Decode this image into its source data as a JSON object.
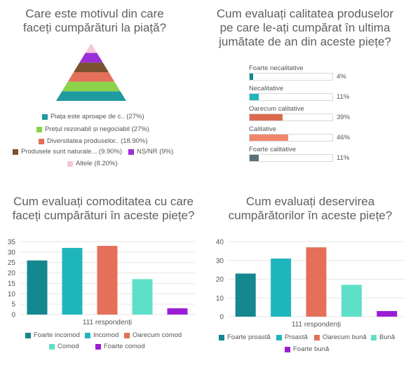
{
  "chart_data": [
    {
      "type": "pyramid",
      "title": "Care este motivul din care faceți cumpărături la piață?",
      "series": [
        {
          "label": "Piața este aproape de c.. (27%)",
          "value": 27,
          "color": "#1f9aa0"
        },
        {
          "label": "Prețul rezonabil și negociabil (27%)",
          "value": 27,
          "color": "#8bd34a"
        },
        {
          "label": "Diversitatea produselor.. (18.90%)",
          "value": 18.9,
          "color": "#e4705a"
        },
        {
          "label": "Produsele sunt naturale... (9.90%)",
          "value": 9.9,
          "color": "#7a5230"
        },
        {
          "label": "NȘ/NR (9%)",
          "value": 9,
          "color": "#9b2fd6"
        },
        {
          "label": "Altele (8.20%)",
          "value": 8.2,
          "color": "#f4c6d8"
        }
      ]
    },
    {
      "type": "bar",
      "orientation": "horizontal",
      "title": "Cum evaluați calitatea produselor pe care le-ați cumpărat în ultima jumătate de an din aceste piețe?",
      "categories": [
        "Foarte necalitative",
        "Necalitative",
        "Oarecum calitative",
        "Calitative",
        "Foarte calitative"
      ],
      "values": [
        4,
        11,
        39,
        46,
        11
      ],
      "labels": [
        "4%",
        "11%",
        "39%",
        "46%",
        "11%"
      ],
      "colors": [
        "#14878f",
        "#1fb5bd",
        "#dd6a4f",
        "#f0876a",
        "#5a7078"
      ]
    },
    {
      "type": "bar",
      "title": "Cum evaluați comoditatea cu care faceți cumpărături în aceste piețe?",
      "categories": [
        "Foarte incomod",
        "Incomod",
        "Oarecum comod",
        "Comod",
        "Foarte comod"
      ],
      "values": [
        26,
        32,
        33,
        17,
        3
      ],
      "colors": [
        "#14878f",
        "#1fb5bd",
        "#e4705a",
        "#5ee0c8",
        "#9b1ed6"
      ],
      "xlabel": "111 respondenți",
      "ylim": [
        0,
        35
      ],
      "yticks": [
        0,
        5,
        10,
        15,
        20,
        25,
        30,
        35
      ]
    },
    {
      "type": "bar",
      "title": "Cum evaluați deservirea cumpărătorilor în aceste piețe?",
      "categories": [
        "Foarte proastă",
        "Proastă",
        "Oarecum bună",
        "Bună",
        "Foarte bună"
      ],
      "values": [
        23,
        31,
        37,
        17,
        3
      ],
      "colors": [
        "#14878f",
        "#1fb5bd",
        "#e4705a",
        "#5ee0c8",
        "#9b1ed6"
      ],
      "xlabel": "111 respondenți",
      "ylim": [
        0,
        40
      ],
      "yticks": [
        0,
        10,
        20,
        30,
        40
      ]
    }
  ],
  "labels": {
    "c1_title_l1": "Care este motivul din care",
    "c1_title_l2": "faceți cumpărături la piață?",
    "c2_title_l1": "Cum evaluați calitatea produselor",
    "c2_title_l2": "pe care le-ați cumpărat în ultima",
    "c2_title_l3": "jumătate de an din aceste piețe?",
    "c3_title_l1": "Cum evaluați comoditatea cu care",
    "c3_title_l2": "faceți cumpărături în aceste piețe?",
    "c4_title_l1": "Cum evaluați deservirea",
    "c4_title_l2": "cumpărătorilor în aceste piețe?"
  }
}
